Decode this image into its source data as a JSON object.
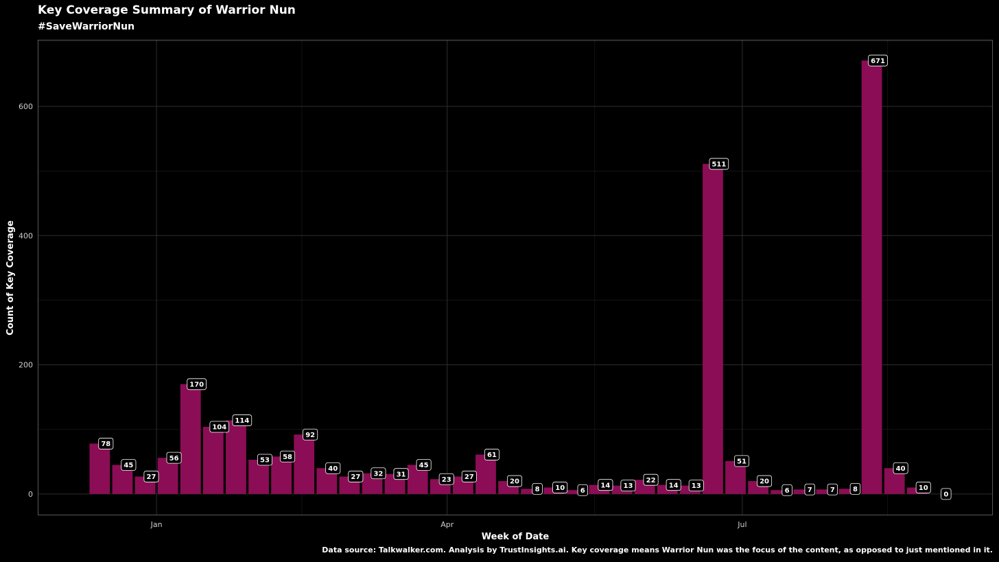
{
  "chart_data": {
    "type": "bar",
    "title": "Key Coverage Summary of Warrior Nun",
    "subtitle": "#SaveWarriorNun",
    "xlabel": "Week of Date",
    "ylabel": "Count of Key Coverage",
    "caption": "Data source: Talkwalker.com. Analysis by TrustInsights.ai. Key coverage means Warrior Nun was the focus of the content, as opposed to just mentioned in it.",
    "ylim": [
      -32,
      702
    ],
    "yticks": [
      0,
      200,
      400,
      600
    ],
    "xticks": [
      {
        "label": "Jan",
        "x": 2.5
      },
      {
        "label": "Apr",
        "x": 15.3
      },
      {
        "label": "Jul",
        "x": 28.3
      }
    ],
    "xlim": [
      -2.7,
      39.3
    ],
    "bar_color": "#8b0d55",
    "background": "#000000",
    "grid": true,
    "values": [
      78,
      45,
      27,
      56,
      170,
      104,
      114,
      53,
      58,
      92,
      40,
      27,
      32,
      31,
      45,
      23,
      27,
      61,
      20,
      8,
      10,
      6,
      14,
      13,
      22,
      14,
      13,
      511,
      51,
      20,
      6,
      7,
      7,
      8,
      671,
      40,
      10,
      0
    ]
  }
}
